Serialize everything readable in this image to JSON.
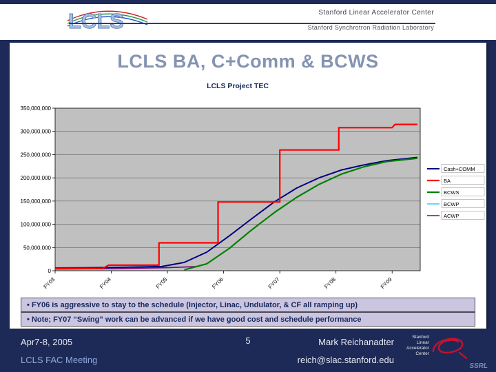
{
  "header": {
    "logo_text": "LCLS",
    "org_line1": "Stanford Linear Accelerator Center",
    "org_line2": "Stanford Synchrotron Radiation Laboratory"
  },
  "slide": {
    "title": "LCLS BA, C+Comm & BCWS",
    "notes": [
      "• FY06 is aggressive to stay to the schedule (Injector, Linac, Undulator, & CF all ramping up)",
      "• Note; FY07 “Swing” work can be advanced if we have good cost and schedule performance"
    ]
  },
  "footer": {
    "date": "Apr7-8, 2005",
    "meeting": "LCLS FAC Meeting",
    "page": "5",
    "presenter": "Mark Reichanadter",
    "email": "reich@slac.stanford.edu",
    "logo_lines": [
      "Stanford",
      "Linear",
      "Accelerator",
      "Center"
    ],
    "ssrl": "SSRL"
  },
  "chart_data": {
    "type": "line",
    "title": "LCLS Project TEC",
    "x_tick_labels": [
      "FY03",
      "FY04",
      "FY05",
      "FY06",
      "FY07",
      "FY08",
      "FY09"
    ],
    "xlim": [
      0,
      6.5
    ],
    "ylim": [
      0,
      350000000
    ],
    "y_ticks": [
      0,
      50000000,
      100000000,
      150000000,
      200000000,
      250000000,
      300000000,
      350000000
    ],
    "y_tick_labels": [
      "0",
      "50,000,000",
      "100,000,000",
      "150,000,000",
      "200,000,000",
      "250,000,000",
      "300,000,000",
      "350,000,000"
    ],
    "plot_bg": "#C0C0C0",
    "grid": true,
    "legend_position": "right",
    "series": [
      {
        "name": "Cash+COMM",
        "color": "#000080",
        "points": [
          [
            0,
            6000000
          ],
          [
            1,
            7000000
          ],
          [
            1.9,
            9000000
          ],
          [
            2.3,
            18000000
          ],
          [
            2.7,
            40000000
          ],
          [
            3.1,
            75000000
          ],
          [
            3.5,
            112000000
          ],
          [
            3.9,
            148000000
          ],
          [
            4.3,
            178000000
          ],
          [
            4.7,
            200000000
          ],
          [
            5.1,
            217000000
          ],
          [
            5.5,
            228000000
          ],
          [
            5.9,
            237000000
          ],
          [
            6.45,
            244000000
          ]
        ]
      },
      {
        "name": "BA",
        "color": "#FF0000",
        "points": [
          [
            0,
            5000000
          ],
          [
            0.85,
            5000000
          ],
          [
            0.95,
            12000000
          ],
          [
            1.85,
            12000000
          ],
          [
            1.85,
            60000000
          ],
          [
            2.9,
            60000000
          ],
          [
            2.9,
            148000000
          ],
          [
            4.0,
            148000000
          ],
          [
            4.0,
            260000000
          ],
          [
            5.05,
            260000000
          ],
          [
            5.05,
            308000000
          ],
          [
            6.0,
            308000000
          ],
          [
            6.05,
            315000000
          ],
          [
            6.45,
            315000000
          ]
        ]
      },
      {
        "name": "BCWS",
        "color": "#008000",
        "points": [
          [
            2.3,
            2000000
          ],
          [
            2.7,
            15000000
          ],
          [
            3.1,
            48000000
          ],
          [
            3.5,
            88000000
          ],
          [
            3.9,
            125000000
          ],
          [
            4.3,
            158000000
          ],
          [
            4.7,
            186000000
          ],
          [
            5.1,
            208000000
          ],
          [
            5.5,
            224000000
          ],
          [
            5.9,
            235000000
          ],
          [
            6.45,
            242000000
          ]
        ]
      },
      {
        "name": "BCWP",
        "color": "#33CCFF",
        "points": [
          [
            0,
            4000000
          ],
          [
            1,
            5000000
          ],
          [
            2,
            7000000
          ],
          [
            2.45,
            8000000
          ]
        ]
      },
      {
        "name": "ACWP",
        "color": "#800080",
        "points": [
          [
            0,
            3500000
          ],
          [
            1,
            4500000
          ],
          [
            2,
            6500000
          ],
          [
            2.5,
            9000000
          ]
        ]
      }
    ]
  }
}
